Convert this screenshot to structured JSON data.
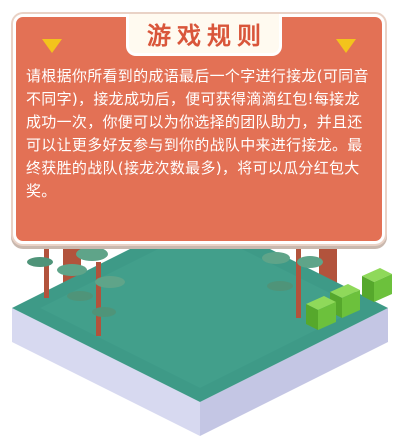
{
  "board": {
    "title": "游戏规则",
    "rules_text": "请根据你所看到的成语最后一个字进行接龙(可同音不同字)，接龙成功后，便可获得滴滴红包!每接龙成功一次，你便可以为你选择的团队助力，并且还可以让更多好友参与到你的战队中来进行接龙。最终获胜的战队(接龙次数最多)，将可以瓜分红包大奖。"
  },
  "colors": {
    "board": "#e37155",
    "title_bg": "#fffaf0",
    "title_text": "#d9563b",
    "triangle": "#f3c31c",
    "ground_top": "#3e9a87",
    "ground_side": "#d7d9f0",
    "tree_leaf": "#5fa489",
    "tree_trunk": "#b2533c",
    "bush": "#6cc13c"
  }
}
